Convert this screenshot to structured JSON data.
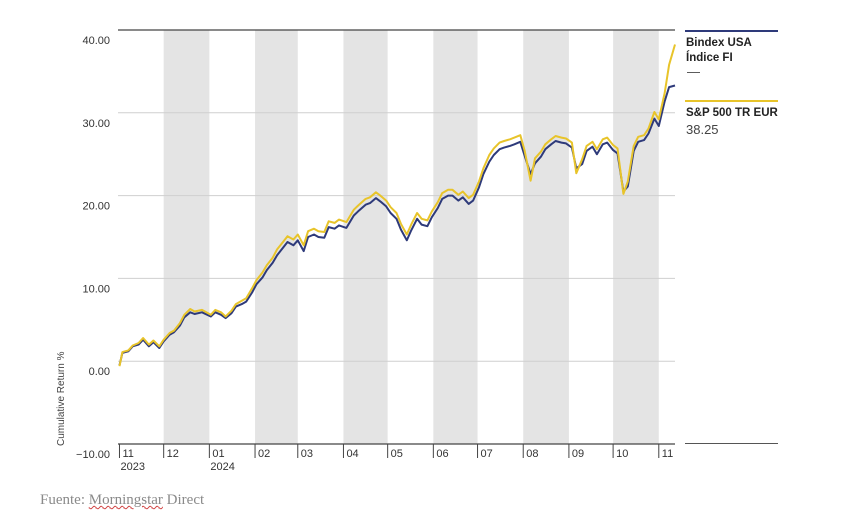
{
  "chart_data": {
    "type": "line",
    "title": "",
    "xlabel": "",
    "ylabel": "Cumulative Return %",
    "ylim": [
      -10,
      40
    ],
    "yticks": [
      {
        "value": 40,
        "label": "40.00"
      },
      {
        "value": 30,
        "label": "30.00"
      },
      {
        "value": 20,
        "label": "20.00"
      },
      {
        "value": 10,
        "label": "10.00"
      },
      {
        "value": 0,
        "label": "0.00"
      },
      {
        "value": -10,
        "label": "−10.00"
      }
    ],
    "xlim": [
      "2023-10-31",
      "2024-11-12"
    ],
    "xticks": [
      {
        "date": "2023-11-01",
        "label": "11",
        "year": "2023"
      },
      {
        "date": "2023-12-01",
        "label": "12",
        "year": ""
      },
      {
        "date": "2024-01-01",
        "label": "01",
        "year": "2024"
      },
      {
        "date": "2024-02-01",
        "label": "02",
        "year": ""
      },
      {
        "date": "2024-03-01",
        "label": "03",
        "year": ""
      },
      {
        "date": "2024-04-01",
        "label": "04",
        "year": ""
      },
      {
        "date": "2024-05-01",
        "label": "05",
        "year": ""
      },
      {
        "date": "2024-06-01",
        "label": "06",
        "year": ""
      },
      {
        "date": "2024-07-01",
        "label": "07",
        "year": ""
      },
      {
        "date": "2024-08-01",
        "label": "08",
        "year": ""
      },
      {
        "date": "2024-09-01",
        "label": "09",
        "year": ""
      },
      {
        "date": "2024-10-01",
        "label": "10",
        "year": ""
      },
      {
        "date": "2024-11-01",
        "label": "11",
        "year": ""
      }
    ],
    "shaded_months": [
      [
        "2023-12-01",
        "2024-01-01"
      ],
      [
        "2024-02-01",
        "2024-03-01"
      ],
      [
        "2024-04-01",
        "2024-05-01"
      ],
      [
        "2024-06-01",
        "2024-07-01"
      ],
      [
        "2024-08-01",
        "2024-09-01"
      ],
      [
        "2024-10-01",
        "2024-11-01"
      ]
    ],
    "grid": true,
    "legend_position": "right",
    "series": [
      {
        "name": "Bindex USA Índice FI",
        "value_label": "—",
        "color": "#2e3a7a",
        "points": [
          [
            "2023-11-01",
            -0.5
          ],
          [
            "2023-11-03",
            1.0
          ],
          [
            "2023-11-07",
            1.2
          ],
          [
            "2023-11-10",
            1.8
          ],
          [
            "2023-11-14",
            2.0
          ],
          [
            "2023-11-17",
            2.6
          ],
          [
            "2023-11-21",
            1.8
          ],
          [
            "2023-11-24",
            2.3
          ],
          [
            "2023-11-28",
            1.6
          ],
          [
            "2023-12-01",
            2.4
          ],
          [
            "2023-12-05",
            3.2
          ],
          [
            "2023-12-08",
            3.5
          ],
          [
            "2023-12-12",
            4.3
          ],
          [
            "2023-12-15",
            5.3
          ],
          [
            "2023-12-19",
            5.9
          ],
          [
            "2023-12-22",
            5.7
          ],
          [
            "2023-12-27",
            5.9
          ],
          [
            "2024-01-02",
            5.4
          ],
          [
            "2024-01-05",
            5.9
          ],
          [
            "2024-01-09",
            5.6
          ],
          [
            "2024-01-12",
            5.2
          ],
          [
            "2024-01-16",
            5.8
          ],
          [
            "2024-01-19",
            6.6
          ],
          [
            "2024-01-23",
            6.9
          ],
          [
            "2024-01-26",
            7.2
          ],
          [
            "2024-01-30",
            8.3
          ],
          [
            "2024-02-02",
            9.3
          ],
          [
            "2024-02-06",
            10.1
          ],
          [
            "2024-02-09",
            11.0
          ],
          [
            "2024-02-13",
            11.9
          ],
          [
            "2024-02-16",
            12.8
          ],
          [
            "2024-02-20",
            13.7
          ],
          [
            "2024-02-23",
            14.4
          ],
          [
            "2024-02-27",
            14.0
          ],
          [
            "2024-03-01",
            14.6
          ],
          [
            "2024-03-05",
            13.3
          ],
          [
            "2024-03-08",
            15.0
          ],
          [
            "2024-03-12",
            15.3
          ],
          [
            "2024-03-15",
            15.0
          ],
          [
            "2024-03-19",
            14.9
          ],
          [
            "2024-03-22",
            16.2
          ],
          [
            "2024-03-26",
            16.0
          ],
          [
            "2024-03-29",
            16.4
          ],
          [
            "2024-04-03",
            16.1
          ],
          [
            "2024-04-08",
            17.6
          ],
          [
            "2024-04-11",
            18.1
          ],
          [
            "2024-04-16",
            18.9
          ],
          [
            "2024-04-19",
            19.1
          ],
          [
            "2024-04-23",
            19.7
          ],
          [
            "2024-04-26",
            19.3
          ],
          [
            "2024-04-30",
            18.7
          ],
          [
            "2024-05-03",
            17.9
          ],
          [
            "2024-05-07",
            17.2
          ],
          [
            "2024-05-10",
            15.9
          ],
          [
            "2024-05-14",
            14.6
          ],
          [
            "2024-05-17",
            15.8
          ],
          [
            "2024-05-21",
            17.2
          ],
          [
            "2024-05-24",
            16.5
          ],
          [
            "2024-05-28",
            16.3
          ],
          [
            "2024-05-31",
            17.4
          ],
          [
            "2024-06-04",
            18.5
          ],
          [
            "2024-06-07",
            19.6
          ],
          [
            "2024-06-11",
            20.0
          ],
          [
            "2024-06-14",
            20.0
          ],
          [
            "2024-06-18",
            19.4
          ],
          [
            "2024-06-21",
            19.8
          ],
          [
            "2024-06-25",
            19.0
          ],
          [
            "2024-06-28",
            19.4
          ],
          [
            "2024-07-02",
            21.0
          ],
          [
            "2024-07-05",
            22.6
          ],
          [
            "2024-07-09",
            24.1
          ],
          [
            "2024-07-12",
            24.9
          ],
          [
            "2024-07-16",
            25.6
          ],
          [
            "2024-07-19",
            25.8
          ],
          [
            "2024-07-23",
            26.0
          ],
          [
            "2024-07-26",
            26.2
          ],
          [
            "2024-07-30",
            26.5
          ],
          [
            "2024-08-02",
            24.8
          ],
          [
            "2024-08-06",
            22.6
          ],
          [
            "2024-08-09",
            23.9
          ],
          [
            "2024-08-13",
            24.7
          ],
          [
            "2024-08-16",
            25.6
          ],
          [
            "2024-08-20",
            26.2
          ],
          [
            "2024-08-23",
            26.6
          ],
          [
            "2024-08-27",
            26.4
          ],
          [
            "2024-08-30",
            26.3
          ],
          [
            "2024-09-03",
            25.8
          ],
          [
            "2024-09-06",
            23.3
          ],
          [
            "2024-09-10",
            23.8
          ],
          [
            "2024-09-13",
            25.4
          ],
          [
            "2024-09-17",
            25.9
          ],
          [
            "2024-09-20",
            25.0
          ],
          [
            "2024-09-24",
            26.2
          ],
          [
            "2024-09-27",
            26.4
          ],
          [
            "2024-10-01",
            25.5
          ],
          [
            "2024-10-04",
            25.1
          ],
          [
            "2024-10-08",
            20.5
          ],
          [
            "2024-10-11",
            21.1
          ],
          [
            "2024-10-15",
            25.4
          ],
          [
            "2024-10-18",
            26.5
          ],
          [
            "2024-10-22",
            26.7
          ],
          [
            "2024-10-25",
            27.5
          ],
          [
            "2024-10-29",
            29.3
          ],
          [
            "2024-11-01",
            28.4
          ],
          [
            "2024-11-05",
            31.4
          ],
          [
            "2024-11-08",
            33.1
          ],
          [
            "2024-11-12",
            33.3
          ]
        ]
      },
      {
        "name": "S&P 500 TR EUR",
        "value_label": "38.25",
        "color": "#e8c42a",
        "points": [
          [
            "2023-11-01",
            -0.6
          ],
          [
            "2023-11-03",
            1.1
          ],
          [
            "2023-11-07",
            1.3
          ],
          [
            "2023-11-10",
            1.9
          ],
          [
            "2023-11-14",
            2.2
          ],
          [
            "2023-11-17",
            2.8
          ],
          [
            "2023-11-21",
            2.0
          ],
          [
            "2023-11-24",
            2.5
          ],
          [
            "2023-11-28",
            1.8
          ],
          [
            "2023-12-01",
            2.6
          ],
          [
            "2023-12-05",
            3.4
          ],
          [
            "2023-12-08",
            3.7
          ],
          [
            "2023-12-12",
            4.6
          ],
          [
            "2023-12-15",
            5.6
          ],
          [
            "2023-12-19",
            6.3
          ],
          [
            "2023-12-22",
            6.0
          ],
          [
            "2023-12-27",
            6.2
          ],
          [
            "2024-01-02",
            5.6
          ],
          [
            "2024-01-05",
            6.2
          ],
          [
            "2024-01-09",
            5.9
          ],
          [
            "2024-01-12",
            5.4
          ],
          [
            "2024-01-16",
            6.1
          ],
          [
            "2024-01-19",
            6.9
          ],
          [
            "2024-01-23",
            7.3
          ],
          [
            "2024-01-26",
            7.6
          ],
          [
            "2024-01-30",
            8.8
          ],
          [
            "2024-02-02",
            9.8
          ],
          [
            "2024-02-06",
            10.7
          ],
          [
            "2024-02-09",
            11.6
          ],
          [
            "2024-02-13",
            12.5
          ],
          [
            "2024-02-16",
            13.5
          ],
          [
            "2024-02-20",
            14.4
          ],
          [
            "2024-02-23",
            15.1
          ],
          [
            "2024-02-27",
            14.7
          ],
          [
            "2024-03-01",
            15.3
          ],
          [
            "2024-03-05",
            14.0
          ],
          [
            "2024-03-08",
            15.7
          ],
          [
            "2024-03-12",
            16.0
          ],
          [
            "2024-03-15",
            15.7
          ],
          [
            "2024-03-19",
            15.6
          ],
          [
            "2024-03-22",
            16.9
          ],
          [
            "2024-03-26",
            16.7
          ],
          [
            "2024-03-29",
            17.1
          ],
          [
            "2024-04-03",
            16.8
          ],
          [
            "2024-04-08",
            18.3
          ],
          [
            "2024-04-11",
            18.8
          ],
          [
            "2024-04-16",
            19.6
          ],
          [
            "2024-04-19",
            19.8
          ],
          [
            "2024-04-23",
            20.4
          ],
          [
            "2024-04-26",
            20.0
          ],
          [
            "2024-04-30",
            19.4
          ],
          [
            "2024-05-03",
            18.6
          ],
          [
            "2024-05-07",
            17.9
          ],
          [
            "2024-05-10",
            16.6
          ],
          [
            "2024-05-14",
            15.3
          ],
          [
            "2024-05-17",
            16.5
          ],
          [
            "2024-05-21",
            17.9
          ],
          [
            "2024-05-24",
            17.2
          ],
          [
            "2024-05-28",
            17.0
          ],
          [
            "2024-05-31",
            18.1
          ],
          [
            "2024-06-04",
            19.2
          ],
          [
            "2024-06-07",
            20.3
          ],
          [
            "2024-06-11",
            20.7
          ],
          [
            "2024-06-14",
            20.7
          ],
          [
            "2024-06-18",
            20.1
          ],
          [
            "2024-06-21",
            20.5
          ],
          [
            "2024-06-25",
            19.7
          ],
          [
            "2024-06-28",
            20.1
          ],
          [
            "2024-07-02",
            21.7
          ],
          [
            "2024-07-05",
            23.3
          ],
          [
            "2024-07-09",
            24.9
          ],
          [
            "2024-07-12",
            25.7
          ],
          [
            "2024-07-16",
            26.4
          ],
          [
            "2024-07-19",
            26.6
          ],
          [
            "2024-07-23",
            26.8
          ],
          [
            "2024-07-26",
            27.0
          ],
          [
            "2024-07-30",
            27.3
          ],
          [
            "2024-08-02",
            25.4
          ],
          [
            "2024-08-06",
            21.8
          ],
          [
            "2024-08-09",
            24.5
          ],
          [
            "2024-08-13",
            25.3
          ],
          [
            "2024-08-16",
            26.2
          ],
          [
            "2024-08-20",
            26.8
          ],
          [
            "2024-08-23",
            27.2
          ],
          [
            "2024-08-27",
            27.0
          ],
          [
            "2024-08-30",
            26.9
          ],
          [
            "2024-09-03",
            26.4
          ],
          [
            "2024-09-06",
            22.7
          ],
          [
            "2024-09-10",
            24.4
          ],
          [
            "2024-09-13",
            26.0
          ],
          [
            "2024-09-17",
            26.5
          ],
          [
            "2024-09-20",
            25.6
          ],
          [
            "2024-09-24",
            26.8
          ],
          [
            "2024-09-27",
            27.0
          ],
          [
            "2024-10-01",
            26.1
          ],
          [
            "2024-10-04",
            25.7
          ],
          [
            "2024-10-08",
            20.2
          ],
          [
            "2024-10-11",
            21.7
          ],
          [
            "2024-10-15",
            26.0
          ],
          [
            "2024-10-18",
            27.1
          ],
          [
            "2024-10-22",
            27.3
          ],
          [
            "2024-10-25",
            28.1
          ],
          [
            "2024-10-29",
            30.1
          ],
          [
            "2024-11-01",
            29.2
          ],
          [
            "2024-11-05",
            32.4
          ],
          [
            "2024-11-08",
            35.8
          ],
          [
            "2024-11-12",
            38.25
          ]
        ]
      }
    ]
  },
  "source": {
    "prefix": "Fuente: ",
    "name": "Morningstar",
    "suffix": " Direct"
  }
}
